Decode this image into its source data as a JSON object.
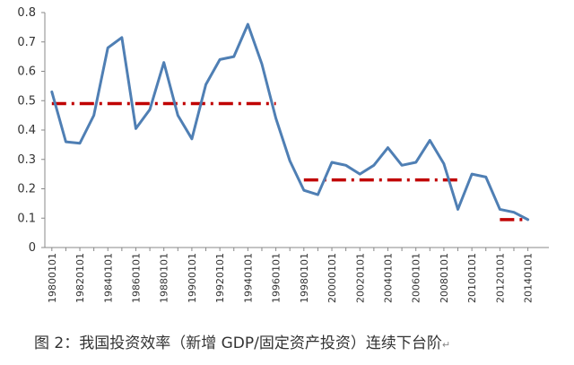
{
  "caption": "图 2：我国投资效率（新增 GDP/固定资产投资）连续下台阶",
  "caption_mark": "↵",
  "colors": {
    "series": "#4F7FB4",
    "reference": "#C00000",
    "axis": "#888888",
    "text": "#333333"
  },
  "chart_data": {
    "type": "line",
    "x": [
      1980,
      1981,
      1982,
      1983,
      1984,
      1985,
      1986,
      1987,
      1988,
      1989,
      1990,
      1991,
      1992,
      1993,
      1994,
      1995,
      1996,
      1997,
      1998,
      1999,
      2000,
      2001,
      2002,
      2003,
      2004,
      2005,
      2006,
      2007,
      2008,
      2009,
      2010,
      2011,
      2012,
      2013,
      2014
    ],
    "series": [
      {
        "values": [
          0.53,
          0.36,
          0.355,
          0.45,
          0.68,
          0.715,
          0.405,
          0.47,
          0.63,
          0.45,
          0.37,
          0.555,
          0.64,
          0.65,
          0.76,
          0.625,
          0.44,
          0.295,
          0.195,
          0.18,
          0.29,
          0.28,
          0.25,
          0.28,
          0.34,
          0.28,
          0.29,
          0.365,
          0.285,
          0.13,
          0.25,
          0.24,
          0.13,
          0.12,
          0.095
        ]
      }
    ],
    "reference_lines": [
      {
        "value": 0.49,
        "from": 1980,
        "to": 1996
      },
      {
        "value": 0.23,
        "from": 1998,
        "to": 2009
      },
      {
        "value": 0.095,
        "from": 2012,
        "to": 2014
      }
    ],
    "ylim": [
      0,
      0.8
    ],
    "yticks": [
      "0",
      "0.1",
      "0.2",
      "0.3",
      "0.4",
      "0.5",
      "0.6",
      "0.7",
      "0.8"
    ],
    "xticks": [
      "19800101",
      "19820101",
      "19840101",
      "19860101",
      "19880101",
      "19900101",
      "19920101",
      "19940101",
      "19960101",
      "19980101",
      "20000101",
      "20020101",
      "20040101",
      "20060101",
      "20080101",
      "20100101",
      "20120101",
      "20140101"
    ],
    "grid": false,
    "legend": false
  }
}
